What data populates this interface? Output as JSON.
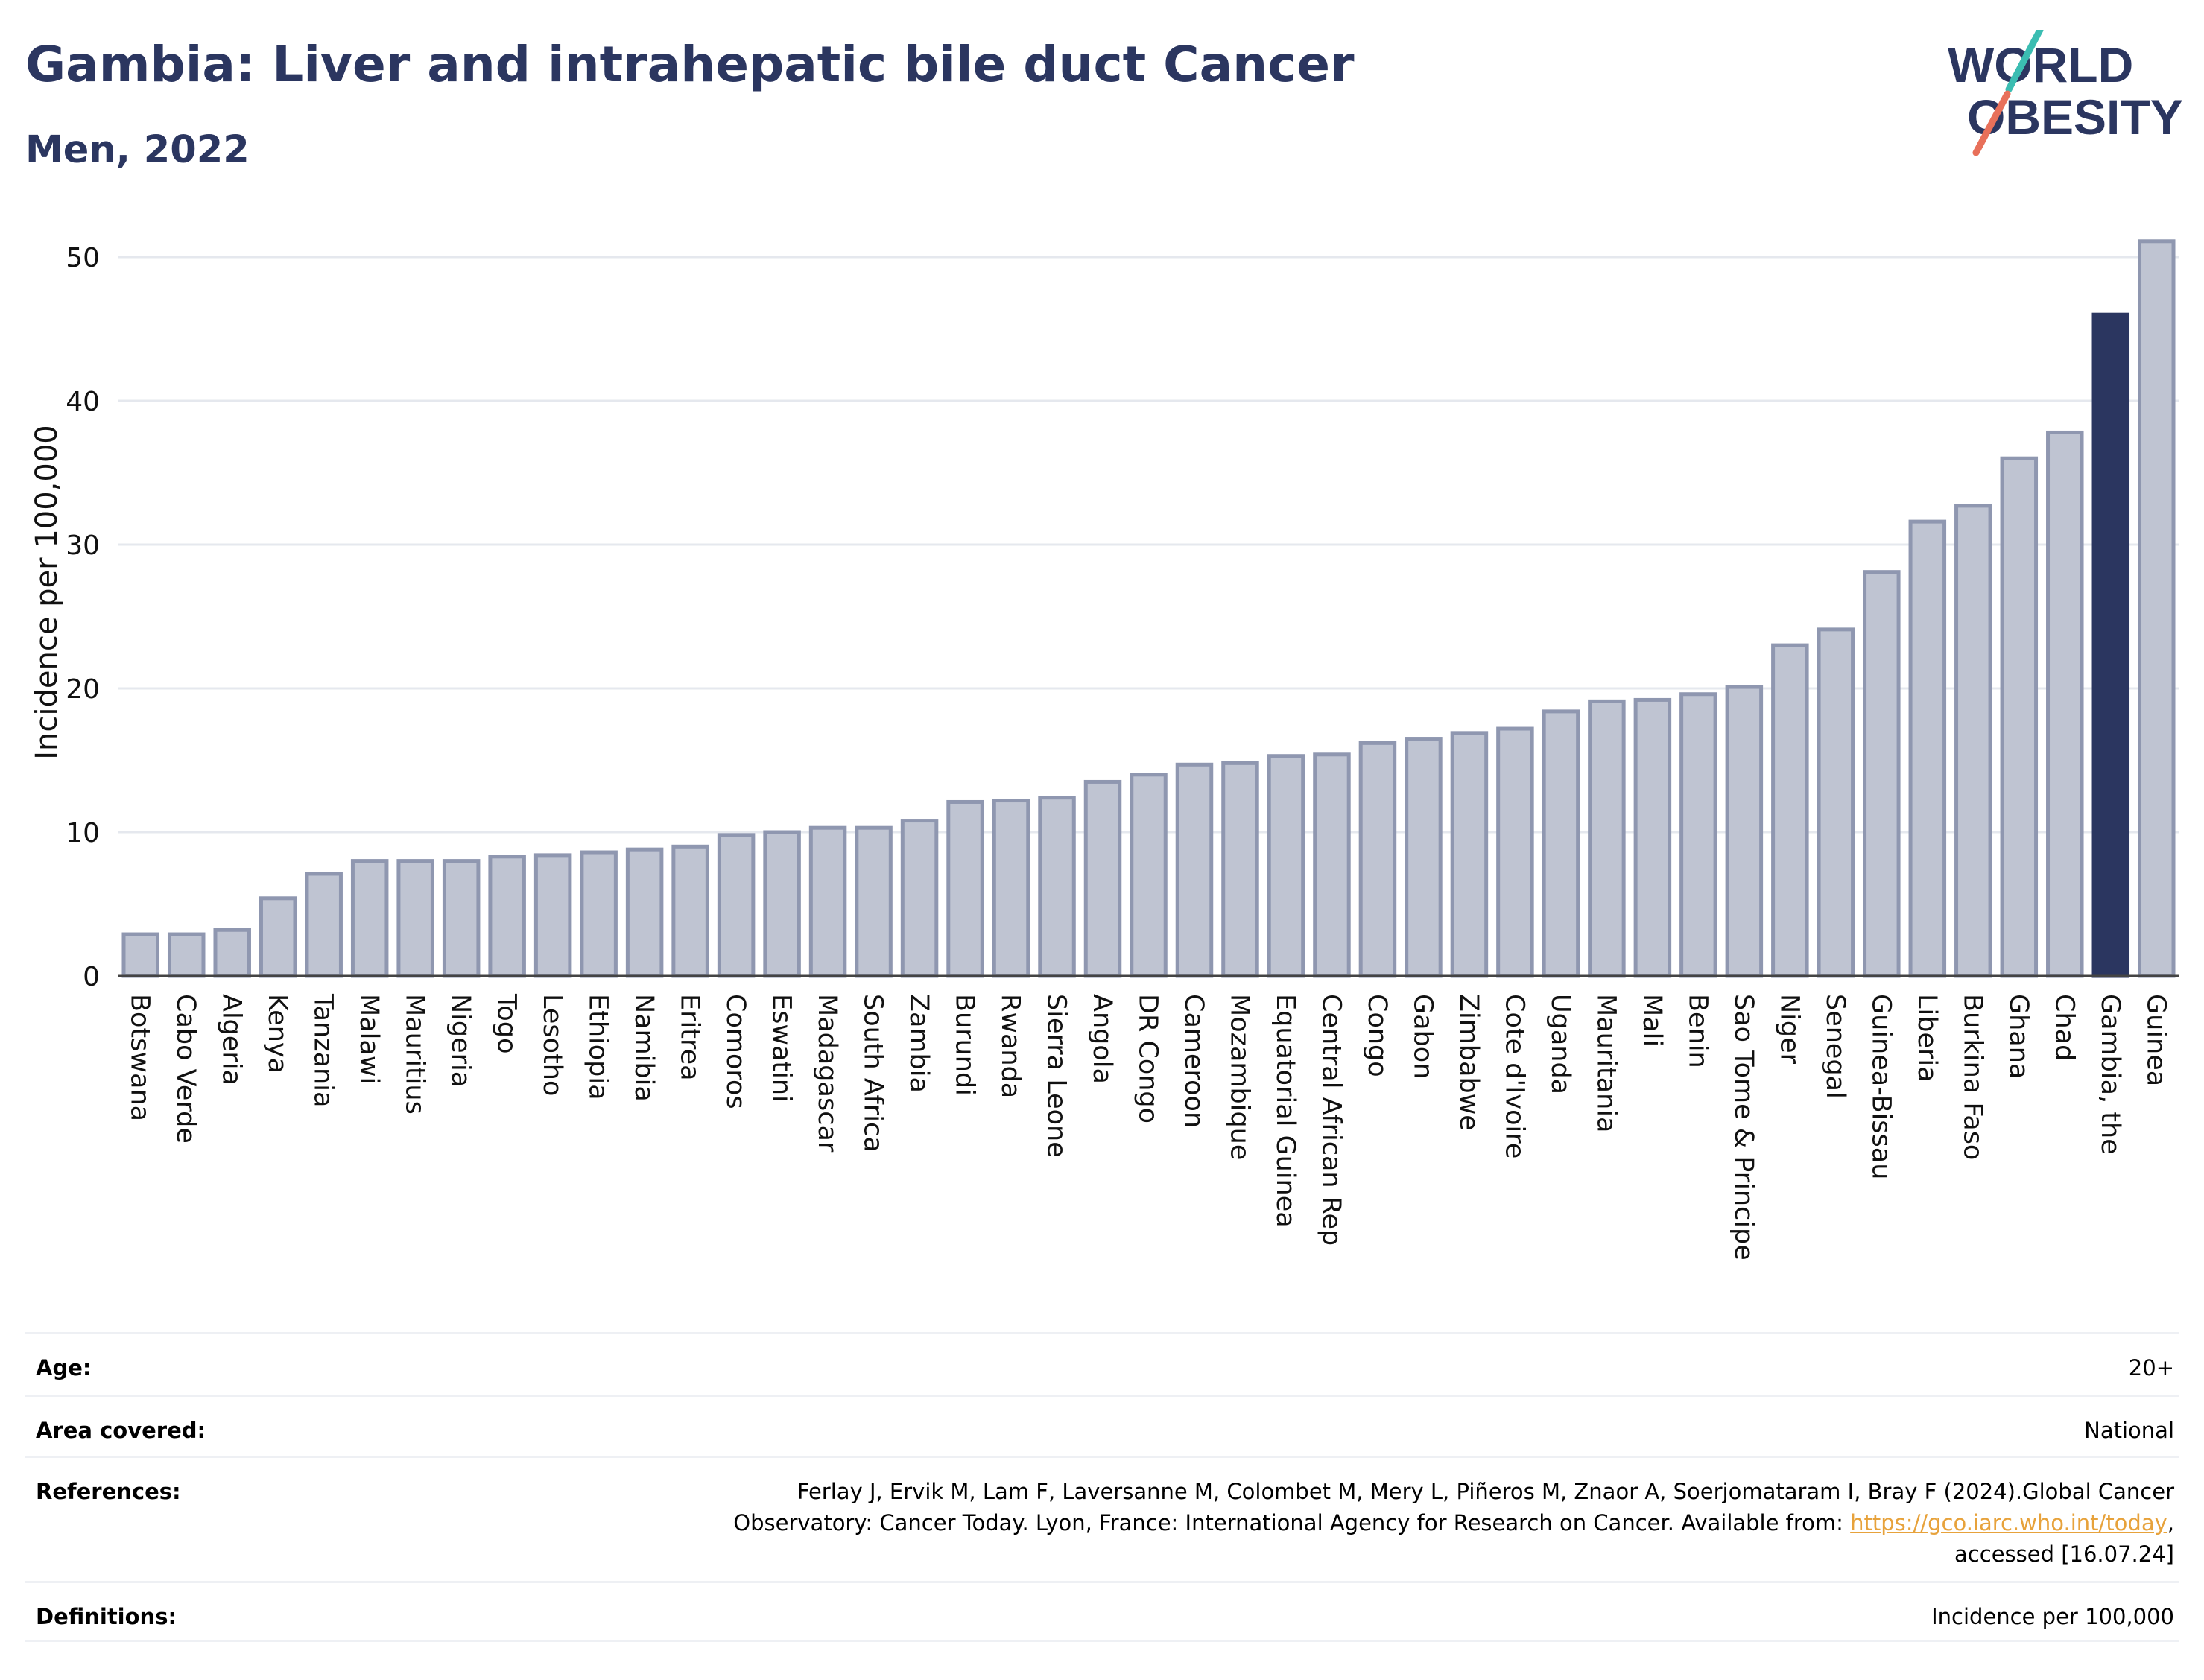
{
  "title": "Gambia: Liver and intrahepatic bile duct Cancer",
  "subtitle": "Men, 2022",
  "logo": {
    "line1": "WORLD",
    "line2": "OBESITY"
  },
  "colors": {
    "default_bar": "#bfc4d2",
    "default_edge": "#8f97b0",
    "highlight_bar": "#2b3660",
    "title": "#2b3660",
    "grid": "#e5e8ee",
    "link": "#e7a23b"
  },
  "chart_data": {
    "type": "bar",
    "ylabel": "Incidence per 100,000",
    "ylim": [
      0,
      52
    ],
    "yticks": [
      0,
      10,
      20,
      30,
      40,
      50
    ],
    "grid": true,
    "highlight": "Gambia, the",
    "categories": [
      "Botswana",
      "Cabo Verde",
      "Algeria",
      "Kenya",
      "Tanzania",
      "Malawi",
      "Mauritius",
      "Nigeria",
      "Togo",
      "Lesotho",
      "Ethiopia",
      "Namibia",
      "Eritrea",
      "Comoros",
      "Eswatini",
      "Madagascar",
      "South Africa",
      "Zambia",
      "Burundi",
      "Rwanda",
      "Sierra Leone",
      "Angola",
      "DR Congo",
      "Cameroon",
      "Mozambique",
      "Equatorial Guinea",
      "Central African Rep",
      "Congo",
      "Gabon",
      "Zimbabwe",
      "Cote d'Ivoire",
      "Uganda",
      "Mauritania",
      "Mali",
      "Benin",
      "Sao Tome & Principe",
      "Niger",
      "Senegal",
      "Guinea-Bissau",
      "Liberia",
      "Burkina Faso",
      "Ghana",
      "Chad",
      "Gambia, the",
      "Guinea"
    ],
    "values": [
      2.9,
      2.9,
      3.2,
      5.4,
      7.1,
      8.0,
      8.0,
      8.0,
      8.3,
      8.4,
      8.6,
      8.8,
      9.0,
      9.8,
      10.0,
      10.3,
      10.3,
      10.8,
      12.1,
      12.2,
      12.4,
      13.5,
      14.0,
      14.7,
      14.8,
      15.3,
      15.4,
      16.2,
      16.5,
      16.9,
      17.2,
      18.4,
      19.1,
      19.2,
      19.6,
      20.1,
      23.0,
      24.1,
      28.1,
      31.6,
      32.7,
      36.0,
      37.8,
      46.0,
      51.1
    ]
  },
  "meta": {
    "age_label": "Age:",
    "age_value": "20+",
    "area_label": "Area covered:",
    "area_value": "National",
    "ref_label": "References:",
    "ref_text_1": "Ferlay J, Ervik M, Lam F, Laversanne M, Colombet M, Mery L, Piñeros M, Znaor A, Soerjomataram I, Bray F (2024).Global Cancer",
    "ref_text_2": "Observatory: Cancer Today. Lyon, France: International Agency for Research on Cancer. Available from: ",
    "ref_link": "https://gco.iarc.who.int/today",
    "ref_text_3": ",",
    "ref_text_4": "accessed [16.07.24]",
    "def_label": "Definitions:",
    "def_value": "Incidence per 100,000"
  }
}
